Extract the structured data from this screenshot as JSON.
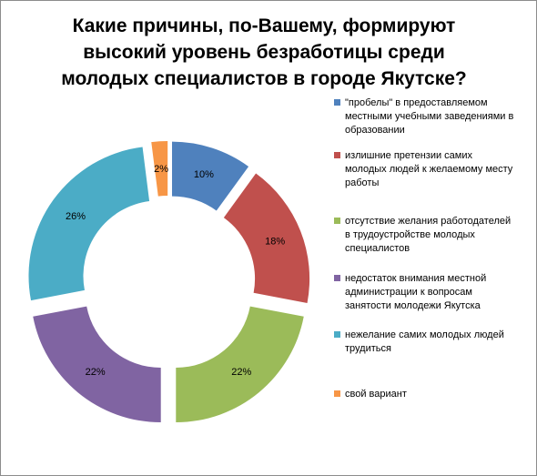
{
  "chart_data": {
    "type": "donut",
    "title": "Какие причины, по-Вашему, формируют\nвысокий  уровень  безработицы  среди\nмолодых специалистов в городе Якутске?",
    "series": [
      {
        "label": "\"пробелы\" в предоставляемом местными учебными заведениями в образовании",
        "value": 10,
        "value_label": "10%",
        "color": "#4F81BD"
      },
      {
        "label": "излишние претензии самих молодых людей к желаемому месту работы",
        "value": 18,
        "value_label": "18%",
        "color": "#C0504D"
      },
      {
        "label": "отсутствие желания работодателей в трудоустройстве молодых специалистов",
        "value": 22,
        "value_label": "22%",
        "color": "#9BBB59"
      },
      {
        "label": "недостаток внимания местной администрации к вопросам занятости молодежи Якутска",
        "value": 22,
        "value_label": "22%",
        "color": "#8064A2"
      },
      {
        "label": "нежелание самих молодых людей трудиться",
        "value": 26,
        "value_label": "26%",
        "color": "#4BACC6"
      },
      {
        "label": "свой вариант",
        "value": 2,
        "value_label": "2%",
        "color": "#F79646"
      }
    ],
    "legend_position": "right"
  }
}
